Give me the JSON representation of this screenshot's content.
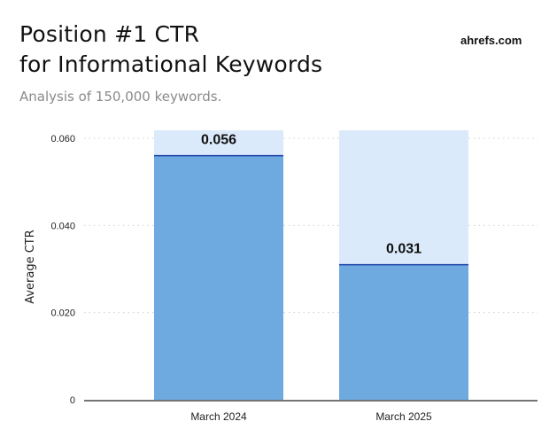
{
  "header": {
    "title_line1": "Position #1 CTR",
    "title_line2": "for Informational Keywords",
    "subtitle": "Analysis of 150,000 keywords.",
    "brand": "ahrefs.com"
  },
  "colors": {
    "bar_fill": "#6ea9e0",
    "bar_background": "#dbeafa",
    "bar_top_line": "#1c3fa8",
    "grid": "#cfcfcf",
    "axis": "#222222"
  },
  "chart_data": {
    "type": "bar",
    "title": "Position #1 CTR for Informational Keywords",
    "subtitle": "Analysis of 150,000 keywords.",
    "xlabel": "",
    "ylabel": "Average CTR",
    "categories": [
      "March 2024",
      "March 2025"
    ],
    "values": [
      0.056,
      0.031
    ],
    "data_labels": [
      "0.056",
      "0.031"
    ],
    "ylim": [
      0,
      0.06
    ],
    "yticks": [
      0,
      0.02,
      0.04,
      0.06
    ],
    "ytick_labels": [
      "0",
      "0.020",
      "0.040",
      "0.060"
    ],
    "grid": true,
    "legend": "none"
  }
}
